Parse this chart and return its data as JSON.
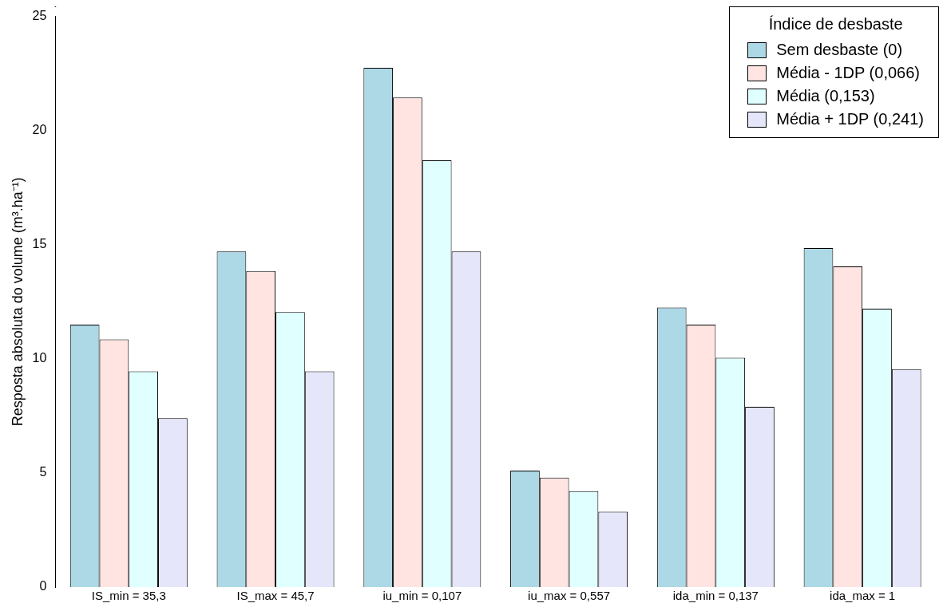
{
  "chart_data": {
    "type": "bar",
    "ylabel": "Resposta absoluta do volume (m³.ha⁻¹)",
    "legend_title": "Índice de desbaste",
    "categories": [
      "IS_min = 35,3",
      "IS_max = 45,7",
      "iu_min = 0,107",
      "iu_max = 0,557",
      "ida_min = 0,137",
      "ida_max = 1"
    ],
    "series": [
      {
        "name": "Sem desbaste (0)",
        "color": "#add8e6",
        "values": [
          11.5,
          14.7,
          22.75,
          5.1,
          12.25,
          14.85
        ]
      },
      {
        "name": "Média - 1DP (0,066)",
        "color": "#ffe4e1",
        "values": [
          10.85,
          13.85,
          21.45,
          4.8,
          11.5,
          14.05
        ]
      },
      {
        "name": "Média (0,153)",
        "color": "#e0ffff",
        "values": [
          9.45,
          12.05,
          18.7,
          4.2,
          10.05,
          12.2
        ]
      },
      {
        "name": "Média + 1DP (0,241)",
        "color": "#e6e6fa",
        "values": [
          7.4,
          9.45,
          14.7,
          3.3,
          7.9,
          9.55
        ]
      }
    ],
    "ylim": [
      0,
      25
    ],
    "yticks": [
      0,
      5,
      10,
      15,
      20,
      25
    ],
    "grid": false,
    "legend": "top right"
  }
}
